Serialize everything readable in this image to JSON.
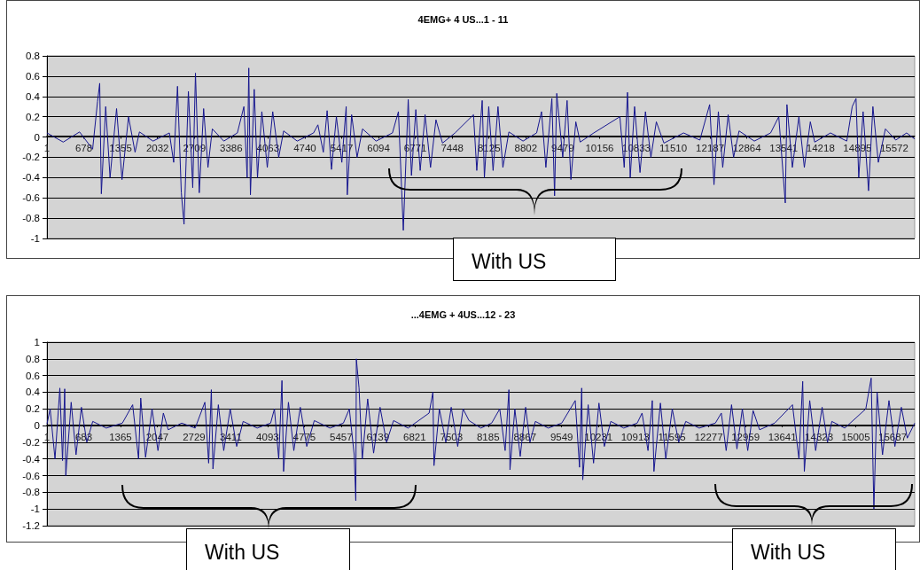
{
  "chart_data": [
    {
      "type": "line",
      "title": "4EMG+ 4 US...1 - 11",
      "marker": "none",
      "grid": "y",
      "xlim": [
        1,
        15948
      ],
      "xticks": [
        1,
        678,
        1355,
        2032,
        2709,
        3386,
        4063,
        4740,
        5417,
        6094,
        6771,
        7448,
        8125,
        8802,
        9479,
        10156,
        10833,
        11510,
        12187,
        12864,
        13541,
        14218,
        14895,
        15572
      ],
      "ylim": [
        -1,
        0.8
      ],
      "yticks": [
        -1,
        -0.8,
        -0.6,
        -0.4,
        -0.2,
        0,
        0.2,
        0.4,
        0.6,
        0.8
      ],
      "x": [
        1,
        300,
        600,
        840,
        930,
        970,
        1000,
        1080,
        1160,
        1280,
        1380,
        1500,
        1620,
        1700,
        1950,
        2250,
        2330,
        2400,
        2470,
        2520,
        2600,
        2680,
        2730,
        2800,
        2880,
        2960,
        3040,
        3250,
        3500,
        3620,
        3680,
        3710,
        3740,
        3810,
        3870,
        3950,
        4050,
        4150,
        4260,
        4350,
        4600,
        4900,
        4980,
        5080,
        5150,
        5230,
        5320,
        5420,
        5500,
        5520,
        5600,
        5700,
        5800,
        6050,
        6350,
        6460,
        6550,
        6640,
        6700,
        6780,
        6860,
        6950,
        7050,
        7150,
        7270,
        7500,
        7840,
        7900,
        8000,
        8040,
        8120,
        8200,
        8290,
        8380,
        8490,
        8750,
        9000,
        9090,
        9170,
        9280,
        9330,
        9370,
        9480,
        9560,
        9630,
        9720,
        9800,
        10050,
        10530,
        10610,
        10670,
        10720,
        10800,
        10900,
        11000,
        11100,
        11200,
        11340,
        11700,
        12000,
        12180,
        12260,
        12340,
        12420,
        12520,
        12620,
        12720,
        13000,
        13300,
        13450,
        13570,
        13600,
        13700,
        13820,
        13920,
        14030,
        14110,
        14400,
        14700,
        14800,
        14870,
        14920,
        15000,
        15100,
        15180,
        15280,
        15410,
        15600,
        15800,
        15948
      ],
      "series": [
        {
          "color": "#16168f",
          "values": [
            0.04,
            -0.05,
            0.05,
            -0.12,
            0.35,
            0.53,
            -0.56,
            0.3,
            -0.4,
            0.28,
            -0.42,
            0.2,
            -0.15,
            0.05,
            -0.04,
            0.04,
            -0.25,
            0.5,
            -0.55,
            -0.86,
            0.45,
            -0.5,
            0.63,
            -0.55,
            0.28,
            -0.3,
            0.08,
            -0.04,
            0.04,
            0.3,
            -0.4,
            0.68,
            -0.57,
            0.47,
            -0.4,
            0.25,
            -0.3,
            0.25,
            -0.2,
            0.06,
            -0.04,
            0.04,
            0.12,
            -0.15,
            0.26,
            -0.32,
            0.2,
            -0.25,
            0.3,
            -0.57,
            0.22,
            -0.2,
            0.08,
            -0.04,
            0.04,
            0.25,
            -0.92,
            0.37,
            -0.38,
            0.27,
            -0.33,
            0.22,
            -0.3,
            0.17,
            -0.06,
            0.04,
            0.22,
            -0.33,
            0.36,
            -0.4,
            0.3,
            -0.33,
            0.3,
            -0.3,
            0.05,
            -0.04,
            0.04,
            0.25,
            -0.3,
            0.38,
            -0.58,
            0.43,
            -0.2,
            0.36,
            -0.42,
            0.15,
            -0.05,
            0.04,
            0.2,
            -0.3,
            0.44,
            -0.4,
            0.3,
            -0.35,
            0.25,
            -0.2,
            0.15,
            -0.06,
            0.04,
            -0.03,
            0.32,
            -0.47,
            0.25,
            -0.3,
            0.22,
            -0.2,
            0.06,
            -0.04,
            0.04,
            0.2,
            -0.65,
            0.32,
            -0.3,
            0.2,
            -0.3,
            0.15,
            -0.05,
            0.04,
            -0.04,
            0.3,
            0.38,
            -0.4,
            0.25,
            -0.53,
            0.3,
            -0.25,
            0.08,
            -0.03,
            0.04,
            -0.02
          ]
        }
      ],
      "annotations": [
        "With US"
      ]
    },
    {
      "type": "line",
      "title": "...4EMG + 4US...12 - 23",
      "marker": "none",
      "grid": "y",
      "xlim": [
        1,
        16097
      ],
      "xticks": [
        1,
        683,
        1365,
        2047,
        2729,
        3411,
        4093,
        4775,
        5457,
        6139,
        6821,
        7503,
        8185,
        8867,
        9549,
        10231,
        10913,
        11595,
        12277,
        12959,
        13641,
        14323,
        15005,
        15687
      ],
      "ylim": [
        -1.2,
        1
      ],
      "yticks": [
        -1.2,
        -1,
        -0.8,
        -0.6,
        -0.4,
        -0.2,
        0,
        0.2,
        0.4,
        0.6,
        0.8,
        1
      ],
      "x": [
        1,
        60,
        150,
        240,
        290,
        330,
        350,
        450,
        540,
        640,
        740,
        850,
        1100,
        1400,
        1590,
        1700,
        1740,
        1830,
        1950,
        2060,
        2160,
        2250,
        2500,
        2750,
        2930,
        3000,
        3050,
        3080,
        3180,
        3280,
        3400,
        3520,
        3640,
        3900,
        4150,
        4220,
        4300,
        4360,
        4390,
        4480,
        4580,
        4700,
        4820,
        4960,
        5250,
        5500,
        5610,
        5700,
        5730,
        5740,
        5790,
        5850,
        5950,
        6060,
        6180,
        6300,
        6430,
        6700,
        7090,
        7160,
        7180,
        7280,
        7400,
        7500,
        7620,
        7720,
        7830,
        8050,
        8250,
        8400,
        8500,
        8570,
        8590,
        8680,
        8780,
        8880,
        8960,
        9060,
        9300,
        9550,
        9800,
        9880,
        9920,
        9940,
        10040,
        10140,
        10240,
        10340,
        10460,
        10700,
        10950,
        11040,
        11150,
        11230,
        11260,
        11380,
        11480,
        11600,
        11720,
        11850,
        12100,
        12400,
        12510,
        12600,
        12700,
        12800,
        12900,
        13000,
        13100,
        13220,
        13500,
        13830,
        13950,
        14020,
        14050,
        14150,
        14260,
        14380,
        14480,
        14560,
        14800,
        15190,
        15290,
        15340,
        15400,
        15500,
        15620,
        15730,
        15850,
        15960,
        16097
      ],
      "series": [
        {
          "color": "#16168f",
          "values": [
            0.02,
            0.2,
            -0.4,
            0.45,
            -0.42,
            0.44,
            -0.6,
            0.28,
            -0.35,
            0.22,
            -0.2,
            0.05,
            -0.03,
            0.03,
            0.25,
            -0.4,
            0.33,
            -0.38,
            0.2,
            -0.3,
            0.15,
            -0.05,
            0.03,
            -0.03,
            0.28,
            -0.45,
            0.43,
            -0.52,
            0.25,
            -0.3,
            0.2,
            -0.25,
            0.05,
            -0.03,
            0.03,
            0.2,
            -0.4,
            0.54,
            -0.55,
            0.28,
            -0.3,
            0.22,
            -0.25,
            0.06,
            -0.03,
            0.03,
            0.2,
            -0.35,
            -0.9,
            0.8,
            0.45,
            -0.4,
            0.32,
            -0.33,
            0.22,
            -0.2,
            0.06,
            -0.03,
            0.15,
            0.4,
            -0.48,
            0.2,
            -0.2,
            0.22,
            -0.25,
            0.2,
            0.06,
            -0.03,
            0.03,
            0.2,
            -0.3,
            0.43,
            -0.53,
            0.2,
            -0.37,
            0.22,
            -0.2,
            0.05,
            -0.03,
            0.03,
            0.3,
            -0.5,
            0.45,
            -0.65,
            0.25,
            -0.45,
            0.27,
            -0.25,
            0.05,
            -0.03,
            0.03,
            0.15,
            -0.3,
            0.3,
            -0.55,
            0.27,
            -0.4,
            0.2,
            -0.2,
            0.05,
            -0.03,
            0.03,
            0.15,
            -0.3,
            0.25,
            -0.28,
            0.2,
            -0.3,
            0.18,
            -0.05,
            0.03,
            0.25,
            -0.4,
            0.53,
            -0.55,
            0.3,
            -0.3,
            0.22,
            -0.2,
            0.05,
            -0.03,
            0.2,
            0.57,
            -1.0,
            0.4,
            -0.35,
            0.3,
            -0.25,
            0.22,
            -0.15,
            0.03
          ]
        }
      ],
      "annotations": [
        "With US",
        "With US"
      ]
    }
  ]
}
